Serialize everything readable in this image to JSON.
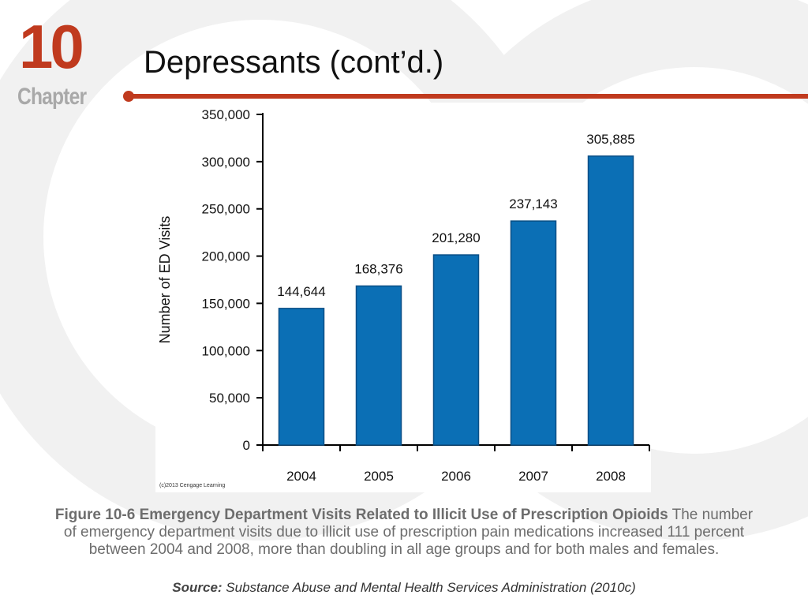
{
  "theme": {
    "accent": "#c03a1e",
    "bar": "#0b6fb5",
    "decor": "#eeeeee",
    "caption": "#6d6d6d"
  },
  "chapter": {
    "number": "10",
    "label": "Chapter"
  },
  "title": "Depressants (cont’d.)",
  "chart_data": {
    "type": "bar",
    "categories": [
      "2004",
      "2005",
      "2006",
      "2007",
      "2008"
    ],
    "values": [
      144644,
      168376,
      201280,
      237143,
      305885
    ],
    "value_labels": [
      "144,644",
      "168,376",
      "201,280",
      "237,143",
      "305,885"
    ],
    "ylabel": "Number of ED Visits",
    "xlabel": "",
    "ylim": [
      0,
      350000
    ],
    "yticks": [
      0,
      50000,
      100000,
      150000,
      200000,
      250000,
      300000,
      350000
    ],
    "ytick_labels": [
      "0",
      "50,000",
      "100,000",
      "150,000",
      "200,000",
      "250,000",
      "300,000",
      "350,000"
    ],
    "grid": false,
    "color": "#0b6fb5"
  },
  "copyright": "(c)2013 Cengage Learning",
  "caption": {
    "bold": "Figure 10-6 Emergency Department Visits Related to Illicit Use of Prescription Opioids",
    "text": " The number of emergency department visits due to illicit use of prescription pain medications increased 111 percent between 2004 and 2008, more than doubling in all age groups and for both males and females."
  },
  "source": {
    "label": "Source:",
    "text": " Substance Abuse and Mental Health Services Administration (2010c)"
  }
}
